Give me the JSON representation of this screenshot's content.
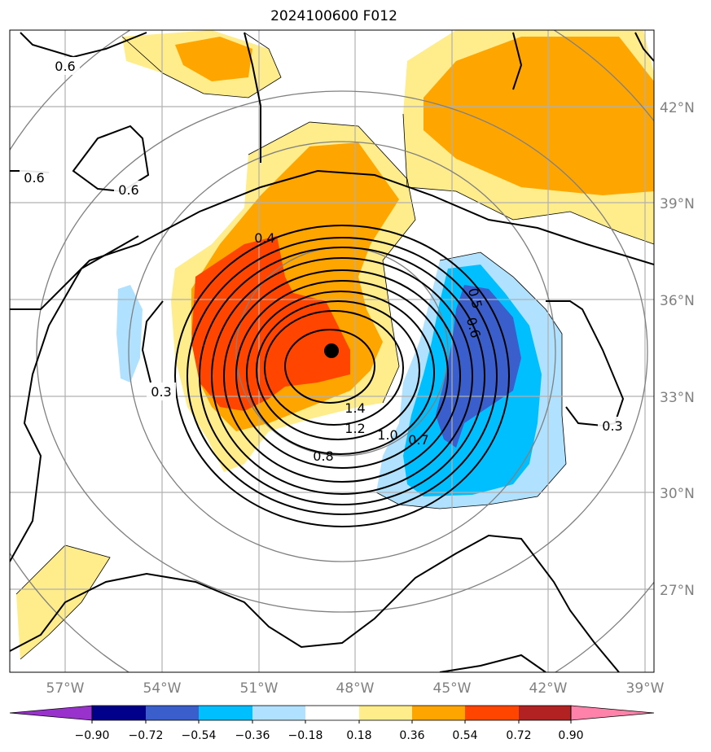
{
  "title": "2024100600 F012",
  "map": {
    "lat_labels": [
      "42°N",
      "39°N",
      "36°N",
      "33°N",
      "30°N",
      "27°N"
    ],
    "lon_labels": [
      "57°W",
      "54°W",
      "51°W",
      "48°W",
      "45°W",
      "42°W",
      "39°W"
    ],
    "contour_labels": [
      "0.6",
      "0.6",
      "0.6",
      "0.4",
      "0.5",
      "0.6",
      "0.3",
      "0.3",
      "1.4",
      "1.2",
      "1.0",
      "0.7",
      "0.8"
    ],
    "center_marker": "storm-center"
  },
  "colorbar": {
    "ticks": [
      "−0.90",
      "−0.72",
      "−0.54",
      "−0.36",
      "−0.18",
      "0.18",
      "0.36",
      "0.54",
      "0.72",
      "0.90"
    ],
    "colors": [
      "#9932cc",
      "#00008b",
      "#3a5fcd",
      "#00bfff",
      "#b0e2ff",
      "#ffffff",
      "#ffec8b",
      "#ffa500",
      "#ff4500",
      "#b22222",
      "#ff82ab"
    ]
  }
}
